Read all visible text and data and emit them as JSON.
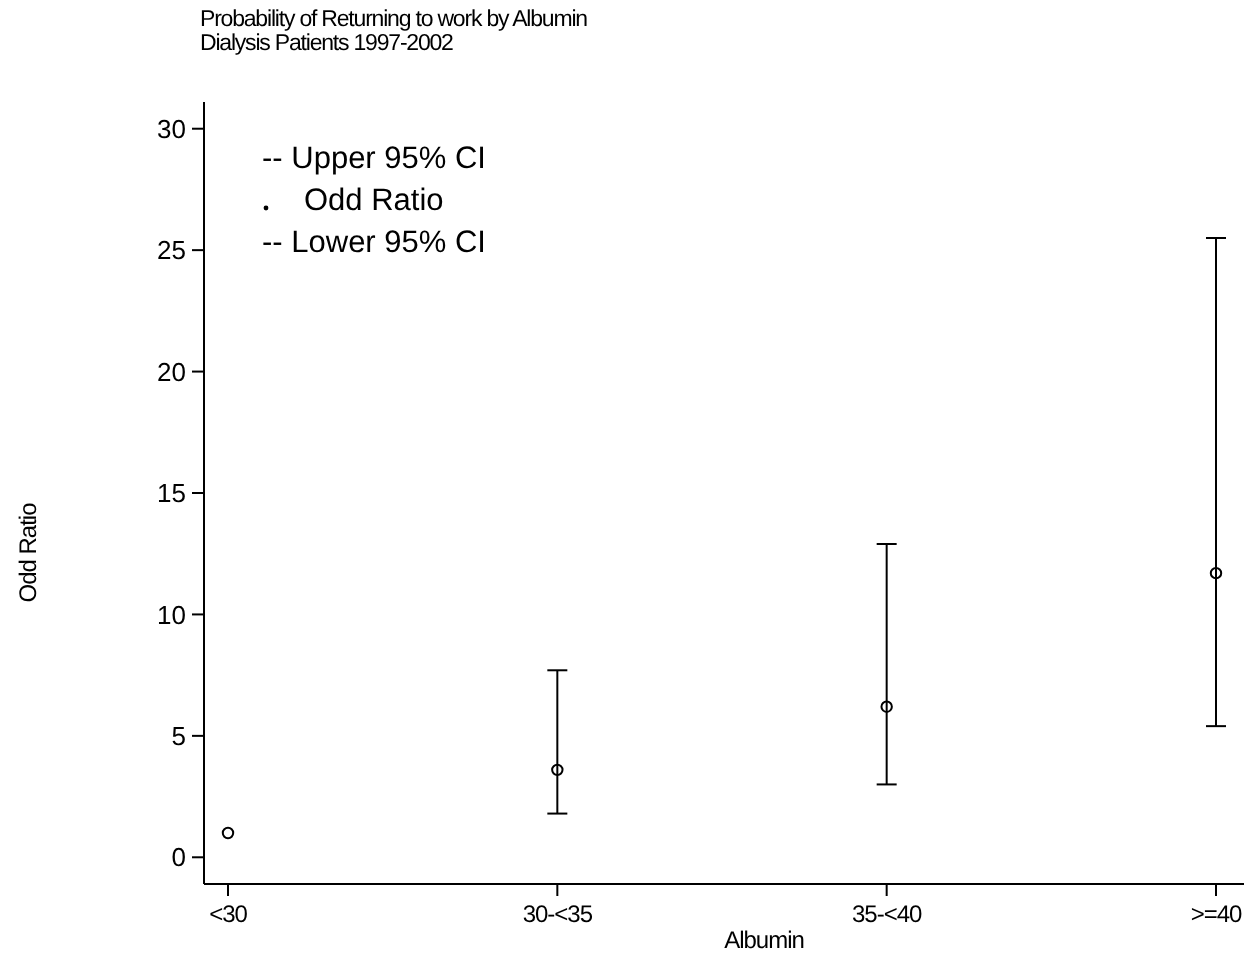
{
  "chart_data": {
    "type": "scatter",
    "title": "Probability of Returning to work by Albumin",
    "subtitle": "Dialysis Patients 1997-2002",
    "xlabel": "Albumin",
    "ylabel": "Odd Ratio",
    "categories": [
      "<30",
      "30-<35",
      "35-<40",
      ">=40"
    ],
    "series": [
      {
        "name": "Odd Ratio",
        "color": "#000000",
        "values": [
          1.0,
          3.6,
          6.2,
          11.7
        ],
        "errors": [
          null,
          [
            1.8,
            7.7
          ],
          [
            3.0,
            12.9
          ],
          [
            5.4,
            25.5
          ]
        ]
      }
    ],
    "annotations": [
      "-- Upper 95% CI",
      "-- Lower 95% CI"
    ],
    "ylim": [
      -1.1,
      31.1
    ],
    "yticks": [
      0,
      5,
      10,
      15,
      20,
      25,
      30
    ],
    "marker": "circle",
    "legend": "top left",
    "grid": false
  }
}
